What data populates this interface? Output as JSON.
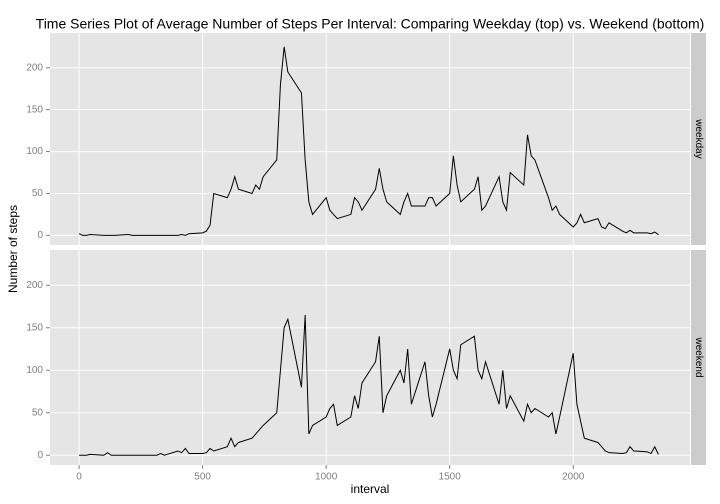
{
  "chart_data": {
    "type": "line",
    "title": "Time Series Plot of Average Number of Steps Per Interval: Comparing Weekday (top) vs. Weekend (bottom)",
    "x_label": "interval",
    "y_label": "Number of steps",
    "x": [
      0,
      15,
      30,
      45,
      100,
      115,
      130,
      145,
      200,
      215,
      230,
      245,
      300,
      315,
      330,
      345,
      400,
      415,
      430,
      445,
      500,
      515,
      530,
      545,
      600,
      615,
      630,
      645,
      700,
      715,
      730,
      745,
      800,
      815,
      830,
      845,
      900,
      915,
      930,
      945,
      1000,
      1015,
      1030,
      1045,
      1100,
      1115,
      1130,
      1145,
      1200,
      1215,
      1230,
      1245,
      1300,
      1315,
      1330,
      1345,
      1400,
      1415,
      1430,
      1445,
      1500,
      1515,
      1530,
      1545,
      1600,
      1615,
      1630,
      1645,
      1700,
      1715,
      1730,
      1745,
      1800,
      1815,
      1830,
      1845,
      1900,
      1915,
      1930,
      1945,
      2000,
      2015,
      2030,
      2045,
      2100,
      2115,
      2130,
      2145,
      2200,
      2215,
      2230,
      2245,
      2300,
      2315,
      2330,
      2345
    ],
    "series": [
      {
        "name": "weekday",
        "color": "#000000",
        "values": [
          2,
          0,
          0,
          1,
          0,
          0,
          0,
          0,
          1,
          0,
          0,
          0,
          0,
          0,
          0,
          0,
          0,
          1,
          0,
          2,
          3,
          5,
          12,
          50,
          45,
          55,
          70,
          55,
          50,
          60,
          55,
          70,
          90,
          180,
          225,
          195,
          170,
          90,
          40,
          25,
          45,
          30,
          25,
          20,
          25,
          45,
          40,
          30,
          55,
          80,
          55,
          40,
          25,
          40,
          50,
          35,
          35,
          45,
          45,
          35,
          50,
          95,
          60,
          40,
          55,
          70,
          30,
          35,
          70,
          40,
          30,
          75,
          60,
          120,
          95,
          90,
          45,
          30,
          35,
          25,
          10,
          15,
          25,
          15,
          20,
          10,
          8,
          15,
          5,
          3,
          6,
          3,
          3,
          2,
          4,
          1
        ]
      },
      {
        "name": "weekend",
        "color": "#000000",
        "values": [
          0,
          0,
          0,
          1,
          0,
          3,
          0,
          0,
          0,
          0,
          0,
          0,
          0,
          0,
          2,
          0,
          5,
          3,
          8,
          2,
          2,
          3,
          8,
          5,
          10,
          20,
          10,
          15,
          20,
          25,
          30,
          35,
          50,
          100,
          150,
          160,
          80,
          165,
          25,
          35,
          45,
          55,
          60,
          35,
          45,
          70,
          55,
          85,
          110,
          140,
          50,
          70,
          100,
          85,
          125,
          60,
          110,
          70,
          45,
          60,
          125,
          100,
          90,
          130,
          140,
          100,
          90,
          110,
          60,
          100,
          55,
          70,
          40,
          60,
          50,
          55,
          45,
          50,
          25,
          45,
          120,
          60,
          40,
          20,
          15,
          10,
          5,
          3,
          2,
          3,
          10,
          5,
          4,
          2,
          10,
          1
        ]
      }
    ],
    "xlim": [
      -117.75,
      2472.75
    ],
    "xticks": [
      0,
      500,
      1000,
      1500,
      2000
    ],
    "ylim": [
      -11.5,
      241.5
    ],
    "yticks": [
      0,
      50,
      100,
      150,
      200
    ],
    "grid": true
  }
}
